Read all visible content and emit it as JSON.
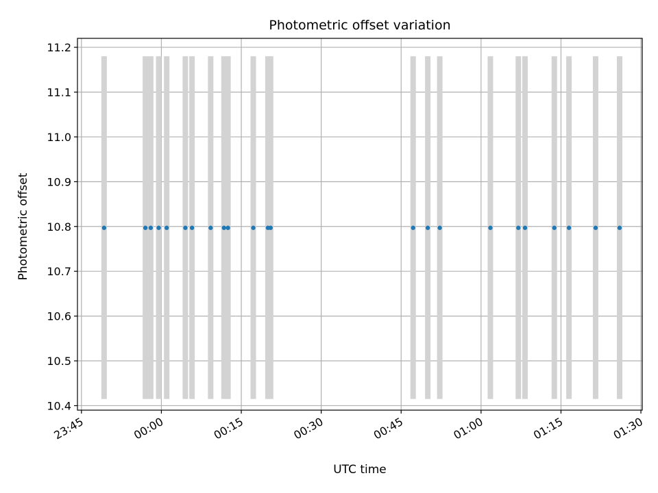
{
  "chart_data": {
    "type": "scatter",
    "title": "Photometric offset variation",
    "xlabel": "UTC time",
    "ylabel": "Photometric offset",
    "x_unit": "time (HH:MM, UTC)",
    "xlim": [
      "23:44:15",
      "01:30:15"
    ],
    "ylim": [
      10.39,
      11.22
    ],
    "x_ticks": [
      "23:45",
      "00:00",
      "00:15",
      "00:30",
      "00:45",
      "01:00",
      "01:15",
      "01:30"
    ],
    "y_ticks": [
      "10.4",
      "10.5",
      "10.6",
      "10.7",
      "10.8",
      "10.9",
      "11.0",
      "11.1",
      "11.2"
    ],
    "grid": true,
    "colors": {
      "points": "#1f77b4",
      "bands": "#d3d3d3",
      "grid": "#b0b0b0"
    },
    "bands": {
      "y_range": [
        10.415,
        11.18
      ],
      "times": [
        "23:49:15",
        "23:57:00",
        "23:58:00",
        "23:59:30",
        "00:01:00",
        "00:04:30",
        "00:05:45",
        "00:09:15",
        "00:11:45",
        "00:12:30",
        "00:17:15",
        "00:20:00",
        "00:20:30",
        "00:47:15",
        "00:50:00",
        "00:52:15",
        "01:01:45",
        "01:07:00",
        "01:08:15",
        "01:13:45",
        "01:16:30",
        "01:21:30",
        "01:26:00"
      ]
    },
    "series": [
      {
        "values": [
          {
            "x": "23:49:15",
            "y": 10.797
          },
          {
            "x": "23:57:00",
            "y": 10.797
          },
          {
            "x": "23:58:00",
            "y": 10.797
          },
          {
            "x": "23:59:30",
            "y": 10.797
          },
          {
            "x": "00:01:00",
            "y": 10.797
          },
          {
            "x": "00:04:30",
            "y": 10.797
          },
          {
            "x": "00:05:45",
            "y": 10.797
          },
          {
            "x": "00:09:15",
            "y": 10.797
          },
          {
            "x": "00:11:45",
            "y": 10.797
          },
          {
            "x": "00:12:30",
            "y": 10.797
          },
          {
            "x": "00:17:15",
            "y": 10.797
          },
          {
            "x": "00:20:00",
            "y": 10.797
          },
          {
            "x": "00:20:30",
            "y": 10.797
          },
          {
            "x": "00:47:15",
            "y": 10.797
          },
          {
            "x": "00:50:00",
            "y": 10.797
          },
          {
            "x": "00:52:15",
            "y": 10.797
          },
          {
            "x": "01:01:45",
            "y": 10.797
          },
          {
            "x": "01:07:00",
            "y": 10.797
          },
          {
            "x": "01:08:15",
            "y": 10.797
          },
          {
            "x": "01:13:45",
            "y": 10.797
          },
          {
            "x": "01:16:30",
            "y": 10.797
          },
          {
            "x": "01:21:30",
            "y": 10.797
          },
          {
            "x": "01:26:00",
            "y": 10.797
          }
        ]
      }
    ]
  }
}
